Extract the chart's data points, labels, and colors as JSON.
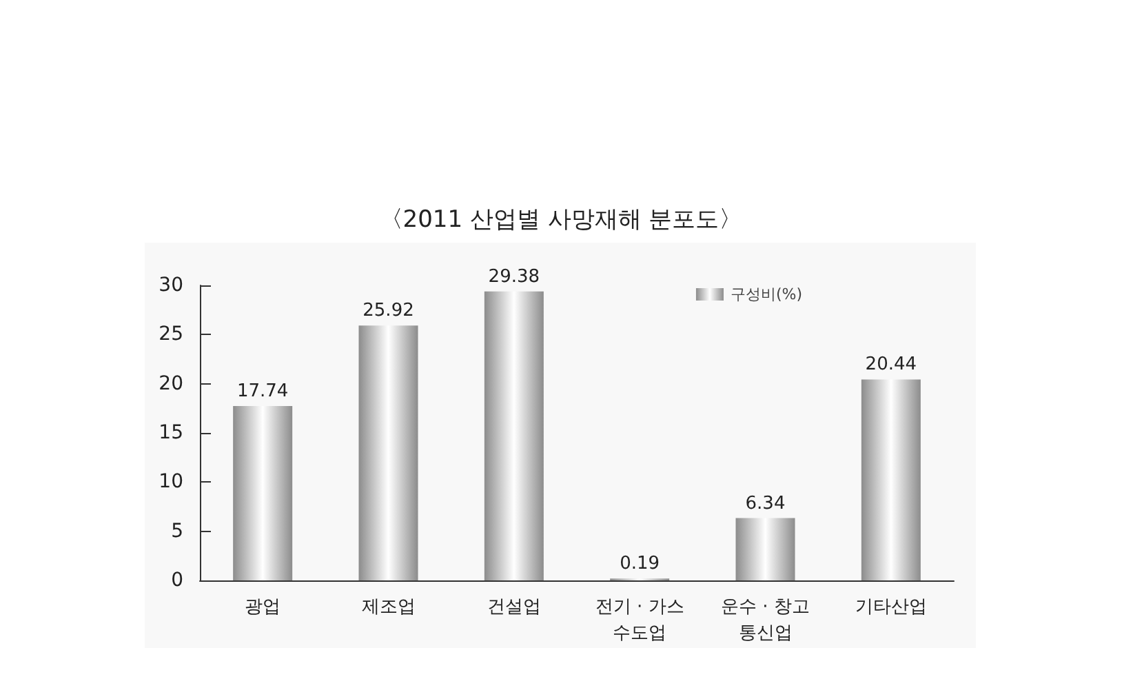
{
  "chart_data": {
    "type": "bar",
    "title": "〈2011 산업별 사망재해 분포도〉",
    "categories": [
      "광업",
      "제조업",
      "건설업",
      "전기 · 가스\n수도업",
      "운수 · 창고\n통신업",
      "기타산업"
    ],
    "series": [
      {
        "name": "구성비(%)",
        "color": "#8c8c8c",
        "values": [
          17.74,
          25.92,
          29.38,
          0.19,
          6.34,
          20.44
        ]
      }
    ],
    "ylim": [
      0,
      30
    ],
    "yticks": [
      0,
      5,
      10,
      15,
      20,
      25,
      30
    ],
    "grid": false,
    "legend": "top right",
    "data_labels": true
  }
}
